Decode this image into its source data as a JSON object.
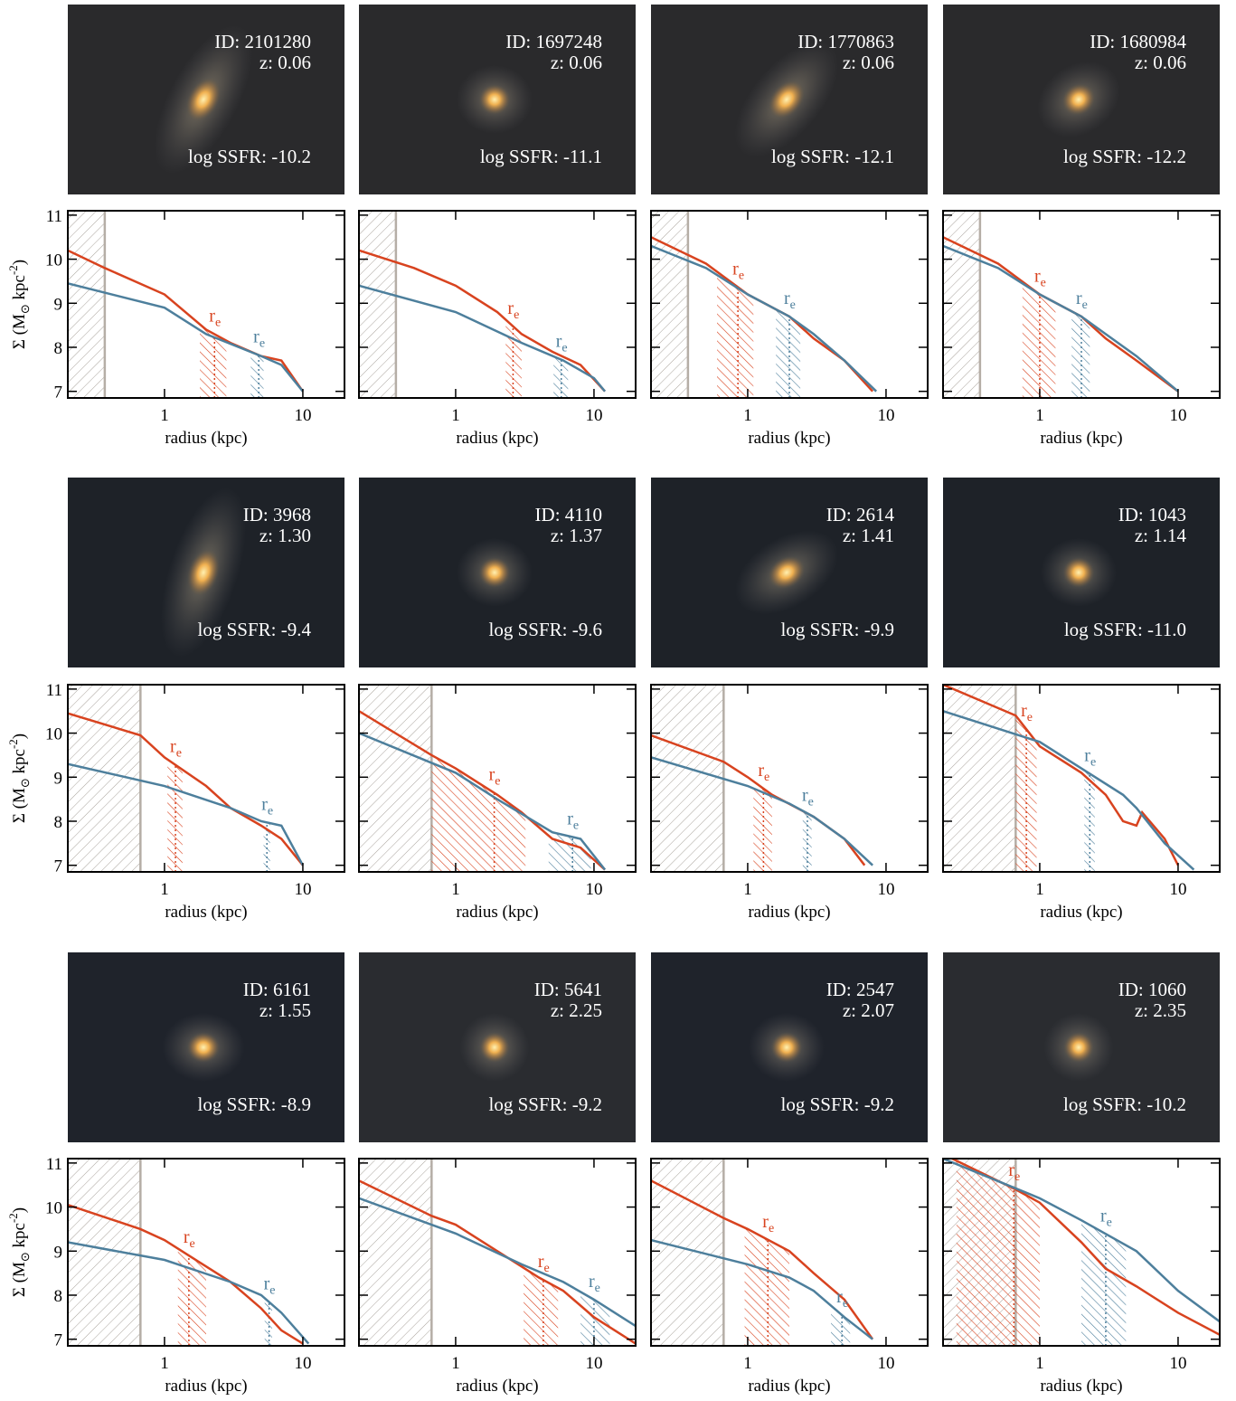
{
  "chart_data": [
    {
      "type": "line",
      "id": "ID: 2101280",
      "z": "z: 0.06",
      "ssfr": "log SSFR: -10.2",
      "xlabel": "radius (kpc)",
      "ylabel": [
        "Σ (M",
        "⊙",
        " kpc",
        "-2",
        ")"
      ],
      "re_label": [
        "r",
        "e"
      ],
      "xlog": true,
      "xlim": [
        0.2,
        20
      ],
      "xticks": [
        1,
        10
      ],
      "ylim": [
        6.85,
        11.1
      ],
      "yticks": [
        7,
        8,
        9,
        10,
        11
      ],
      "show_ytick_labels": true,
      "psf_radius": 0.37,
      "series": [
        {
          "color": "#d8431f",
          "x": [
            0.2,
            0.37,
            1,
            2,
            3,
            5,
            7,
            10
          ],
          "values": [
            10.2,
            9.8,
            9.2,
            8.4,
            8.1,
            7.8,
            7.7,
            7.0
          ],
          "re": 2.3,
          "re_band": [
            1.8,
            2.8
          ]
        },
        {
          "color": "#4d7f9c",
          "x": [
            0.2,
            1,
            2,
            5,
            7,
            10
          ],
          "values": [
            9.45,
            8.9,
            8.3,
            7.8,
            7.6,
            7.0
          ],
          "re": 4.8,
          "re_band": [
            4.2,
            5.2
          ]
        }
      ]
    },
    {
      "type": "line",
      "id": "ID: 1697248",
      "z": "z: 0.06",
      "ssfr": "log SSFR: -11.1",
      "xlabel": "radius (kpc)",
      "re_label": [
        "r",
        "e"
      ],
      "xlog": true,
      "xlim": [
        0.2,
        20
      ],
      "xticks": [
        1,
        10
      ],
      "ylim": [
        6.85,
        11.1
      ],
      "yticks": [
        7,
        8,
        9,
        10,
        11
      ],
      "show_ytick_labels": false,
      "psf_radius": 0.37,
      "series": [
        {
          "color": "#d8431f",
          "x": [
            0.2,
            0.5,
            1,
            2,
            3,
            5,
            8,
            12
          ],
          "values": [
            10.2,
            9.8,
            9.4,
            8.8,
            8.3,
            7.9,
            7.6,
            7.0
          ],
          "re": 2.6,
          "re_band": [
            2.3,
            3.0
          ]
        },
        {
          "color": "#4d7f9c",
          "x": [
            0.2,
            1,
            3,
            6,
            10,
            12
          ],
          "values": [
            9.4,
            8.8,
            8.1,
            7.7,
            7.3,
            7.0
          ],
          "re": 5.8,
          "re_band": [
            5.1,
            6.5
          ]
        }
      ]
    },
    {
      "type": "line",
      "id": "ID: 1770863",
      "z": "z: 0.06",
      "ssfr": "log SSFR: -12.1",
      "xlabel": "radius (kpc)",
      "re_label": [
        "r",
        "e"
      ],
      "xlog": true,
      "xlim": [
        0.2,
        20
      ],
      "xticks": [
        1,
        10
      ],
      "ylim": [
        6.85,
        11.1
      ],
      "yticks": [
        7,
        8,
        9,
        10,
        11
      ],
      "show_ytick_labels": false,
      "psf_radius": 0.37,
      "series": [
        {
          "color": "#d8431f",
          "x": [
            0.2,
            0.5,
            1,
            2,
            3,
            5,
            8
          ],
          "values": [
            10.5,
            9.9,
            9.2,
            8.7,
            8.2,
            7.7,
            7.0
          ],
          "re": 0.85,
          "re_band": [
            0.6,
            1.1
          ]
        },
        {
          "color": "#4d7f9c",
          "x": [
            0.2,
            0.5,
            1,
            2,
            3,
            5,
            8.5
          ],
          "values": [
            10.3,
            9.8,
            9.2,
            8.7,
            8.3,
            7.7,
            7.0
          ],
          "re": 2.0,
          "re_band": [
            1.6,
            2.4
          ]
        }
      ]
    },
    {
      "type": "line",
      "id": "ID: 1680984",
      "z": "z: 0.06",
      "ssfr": "log SSFR: -12.2",
      "xlabel": "radius (kpc)",
      "re_label": [
        "r",
        "e"
      ],
      "xlog": true,
      "xlim": [
        0.2,
        20
      ],
      "xticks": [
        1,
        10
      ],
      "ylim": [
        6.85,
        11.1
      ],
      "yticks": [
        7,
        8,
        9,
        10,
        11
      ],
      "show_ytick_labels": false,
      "psf_radius": 0.37,
      "series": [
        {
          "color": "#d8431f",
          "x": [
            0.2,
            0.5,
            1,
            2,
            3,
            5,
            10
          ],
          "values": [
            10.5,
            9.9,
            9.2,
            8.7,
            8.2,
            7.7,
            7.0
          ],
          "re": 1.0,
          "re_band": [
            0.75,
            1.3
          ]
        },
        {
          "color": "#4d7f9c",
          "x": [
            0.2,
            0.5,
            1,
            2,
            3,
            5,
            10
          ],
          "values": [
            10.3,
            9.8,
            9.2,
            8.7,
            8.3,
            7.8,
            7.0
          ],
          "re": 2.0,
          "re_band": [
            1.7,
            2.3
          ]
        }
      ]
    },
    {
      "type": "line",
      "id": "ID: 3968",
      "z": "z: 1.30",
      "ssfr": "log SSFR: -9.4",
      "xlabel": "radius (kpc)",
      "ylabel": [
        "Σ (M",
        "⊙",
        " kpc",
        "-2",
        ")"
      ],
      "re_label": [
        "r",
        "e"
      ],
      "xlog": true,
      "xlim": [
        0.2,
        20
      ],
      "xticks": [
        1,
        10
      ],
      "ylim": [
        6.85,
        11.1
      ],
      "yticks": [
        7,
        8,
        9,
        10,
        11
      ],
      "show_ytick_labels": true,
      "psf_radius": 0.67,
      "series": [
        {
          "color": "#d8431f",
          "x": [
            0.2,
            0.67,
            1,
            2,
            3,
            5,
            7,
            10
          ],
          "values": [
            10.45,
            9.95,
            9.45,
            8.8,
            8.3,
            7.9,
            7.6,
            7.0
          ],
          "re": 1.2,
          "re_band": [
            1.05,
            1.35
          ]
        },
        {
          "color": "#4d7f9c",
          "x": [
            0.2,
            1,
            3,
            5,
            7,
            10
          ],
          "values": [
            9.3,
            8.8,
            8.3,
            8.0,
            7.9,
            7.0
          ],
          "re": 5.5,
          "re_band": [
            5.2,
            5.8
          ]
        }
      ]
    },
    {
      "type": "line",
      "id": "ID: 4110",
      "z": "z: 1.37",
      "ssfr": "log SSFR: -9.6",
      "xlabel": "radius (kpc)",
      "re_label": [
        "r",
        "e"
      ],
      "xlog": true,
      "xlim": [
        0.2,
        20
      ],
      "xticks": [
        1,
        10
      ],
      "ylim": [
        6.85,
        11.1
      ],
      "yticks": [
        7,
        8,
        9,
        10,
        11
      ],
      "show_ytick_labels": false,
      "psf_radius": 0.67,
      "series": [
        {
          "color": "#d8431f",
          "x": [
            0.2,
            0.67,
            1,
            2,
            3,
            5,
            8,
            12
          ],
          "values": [
            10.5,
            9.5,
            9.2,
            8.6,
            8.2,
            7.6,
            7.4,
            6.9
          ],
          "re": 1.9,
          "re_band": [
            0.67,
            3.2
          ]
        },
        {
          "color": "#4d7f9c",
          "x": [
            0.2,
            1,
            2,
            5,
            8,
            12
          ],
          "values": [
            10.0,
            9.1,
            8.5,
            7.75,
            7.6,
            6.9
          ],
          "re": 7.0,
          "re_band": [
            4.7,
            9.5
          ]
        }
      ]
    },
    {
      "type": "line",
      "id": "ID: 2614",
      "z": "z: 1.41",
      "ssfr": "log SSFR: -9.9",
      "xlabel": "radius (kpc)",
      "re_label": [
        "r",
        "e"
      ],
      "xlog": true,
      "xlim": [
        0.2,
        20
      ],
      "xticks": [
        1,
        10
      ],
      "ylim": [
        6.85,
        11.1
      ],
      "yticks": [
        7,
        8,
        9,
        10,
        11
      ],
      "show_ytick_labels": false,
      "psf_radius": 0.67,
      "series": [
        {
          "color": "#d8431f",
          "x": [
            0.2,
            0.67,
            1,
            1.5,
            3,
            5,
            7
          ],
          "values": [
            9.95,
            9.35,
            9.0,
            8.6,
            8.1,
            7.6,
            7.0
          ],
          "re": 1.3,
          "re_band": [
            1.1,
            1.5
          ]
        },
        {
          "color": "#4d7f9c",
          "x": [
            0.2,
            1,
            2,
            3,
            5,
            8
          ],
          "values": [
            9.45,
            8.8,
            8.4,
            8.1,
            7.6,
            7.0
          ],
          "re": 2.7,
          "re_band": [
            2.5,
            2.9
          ]
        }
      ]
    },
    {
      "type": "line",
      "id": "ID: 1043",
      "z": "z: 1.14",
      "ssfr": "log SSFR: -11.0",
      "xlabel": "radius (kpc)",
      "re_label": [
        "r",
        "e"
      ],
      "xlog": true,
      "xlim": [
        0.2,
        20
      ],
      "xticks": [
        1,
        10
      ],
      "ylim": [
        6.85,
        11.1
      ],
      "yticks": [
        7,
        8,
        9,
        10,
        11
      ],
      "show_ytick_labels": false,
      "psf_radius": 0.67,
      "series": [
        {
          "color": "#d8431f",
          "x": [
            0.2,
            0.67,
            1,
            2,
            3,
            4,
            5,
            5.5,
            8,
            10
          ],
          "values": [
            11.1,
            10.4,
            9.7,
            9.1,
            8.6,
            8.0,
            7.9,
            8.2,
            7.6,
            7.0
          ],
          "re": 0.8,
          "re_band": [
            0.67,
            0.95
          ]
        },
        {
          "color": "#4d7f9c",
          "x": [
            0.2,
            1,
            2,
            4,
            5,
            8,
            13
          ],
          "values": [
            10.5,
            9.8,
            9.2,
            8.6,
            8.3,
            7.5,
            6.9
          ],
          "re": 2.3,
          "re_band": [
            2.1,
            2.5
          ]
        }
      ]
    },
    {
      "type": "line",
      "id": "ID: 6161",
      "z": "z: 1.55",
      "ssfr": "log SSFR: -8.9",
      "xlabel": "radius (kpc)",
      "ylabel": [
        "Σ (M",
        "⊙",
        " kpc",
        "-2",
        ")"
      ],
      "re_label": [
        "r",
        "e"
      ],
      "xlog": true,
      "xlim": [
        0.2,
        20
      ],
      "xticks": [
        1,
        10
      ],
      "ylim": [
        6.85,
        11.1
      ],
      "yticks": [
        7,
        8,
        9,
        10,
        11
      ],
      "show_ytick_labels": true,
      "psf_radius": 0.67,
      "series": [
        {
          "color": "#d8431f",
          "x": [
            0.2,
            0.67,
            1,
            1.5,
            3,
            5,
            7,
            10
          ],
          "values": [
            10.05,
            9.5,
            9.25,
            8.9,
            8.3,
            7.7,
            7.2,
            6.9
          ],
          "re": 1.5,
          "re_band": [
            1.25,
            2.0
          ]
        },
        {
          "color": "#4d7f9c",
          "x": [
            0.2,
            1,
            3,
            5,
            7,
            11
          ],
          "values": [
            9.2,
            8.8,
            8.3,
            8.0,
            7.6,
            6.9
          ],
          "re": 5.7,
          "re_band": [
            5.3,
            6.0
          ]
        }
      ]
    },
    {
      "type": "line",
      "id": "ID: 5641",
      "z": "z: 2.25",
      "ssfr": "log SSFR: -9.2",
      "xlabel": "radius (kpc)",
      "re_label": [
        "r",
        "e"
      ],
      "xlog": true,
      "xlim": [
        0.2,
        20
      ],
      "xticks": [
        1,
        10
      ],
      "ylim": [
        6.85,
        11.1
      ],
      "yticks": [
        7,
        8,
        9,
        10,
        11
      ],
      "show_ytick_labels": false,
      "psf_radius": 0.67,
      "series": [
        {
          "color": "#d8431f",
          "x": [
            0.2,
            0.67,
            1,
            2,
            4,
            6,
            10,
            20
          ],
          "values": [
            10.6,
            9.8,
            9.6,
            9.0,
            8.4,
            8.1,
            7.5,
            6.9
          ],
          "re": 4.3,
          "re_band": [
            3.1,
            5.5
          ]
        },
        {
          "color": "#4d7f9c",
          "x": [
            0.2,
            1,
            3,
            6,
            10,
            20
          ],
          "values": [
            10.2,
            9.4,
            8.7,
            8.3,
            7.9,
            7.3
          ],
          "re": 10,
          "re_band": [
            8.0,
            13
          ]
        }
      ]
    },
    {
      "type": "line",
      "id": "ID: 2547",
      "z": "z: 2.07",
      "ssfr": "log SSFR: -9.2",
      "xlabel": "radius (kpc)",
      "re_label": [
        "r",
        "e"
      ],
      "xlog": true,
      "xlim": [
        0.2,
        20
      ],
      "xticks": [
        1,
        10
      ],
      "ylim": [
        6.85,
        11.1
      ],
      "yticks": [
        7,
        8,
        9,
        10,
        11
      ],
      "show_ytick_labels": false,
      "psf_radius": 0.67,
      "series": [
        {
          "color": "#d8431f",
          "x": [
            0.2,
            0.67,
            1,
            2,
            3,
            5,
            8
          ],
          "values": [
            10.6,
            9.75,
            9.5,
            9.0,
            8.5,
            7.9,
            7.0
          ],
          "re": 1.4,
          "re_band": [
            0.95,
            2.0
          ]
        },
        {
          "color": "#4d7f9c",
          "x": [
            0.2,
            1,
            2,
            3,
            5,
            8
          ],
          "values": [
            9.25,
            8.7,
            8.4,
            8.1,
            7.5,
            7.0
          ],
          "re": 4.8,
          "re_band": [
            4.0,
            5.5
          ]
        }
      ]
    },
    {
      "type": "line",
      "id": "ID: 1060",
      "z": "z: 2.35",
      "ssfr": "log SSFR: -10.2",
      "xlabel": "radius (kpc)",
      "re_label": [
        "r",
        "e"
      ],
      "xlog": true,
      "xlim": [
        0.2,
        20
      ],
      "xticks": [
        1,
        10
      ],
      "ylim": [
        6.85,
        11.1
      ],
      "yticks": [
        7,
        8,
        9,
        10,
        11
      ],
      "show_ytick_labels": false,
      "psf_radius": 0.67,
      "series": [
        {
          "color": "#d8431f",
          "x": [
            0.2,
            0.67,
            1,
            2,
            3,
            5,
            10,
            20
          ],
          "values": [
            11.2,
            10.4,
            10.1,
            9.2,
            8.6,
            8.2,
            7.6,
            7.1
          ],
          "re": 0.65,
          "re_band": [
            0.25,
            1.0
          ]
        },
        {
          "color": "#4d7f9c",
          "x": [
            0.2,
            1,
            2,
            5,
            10,
            20
          ],
          "values": [
            11.1,
            10.2,
            9.7,
            9.0,
            8.1,
            7.4
          ],
          "re": 3.0,
          "re_band": [
            2.0,
            4.2
          ]
        }
      ]
    }
  ]
}
